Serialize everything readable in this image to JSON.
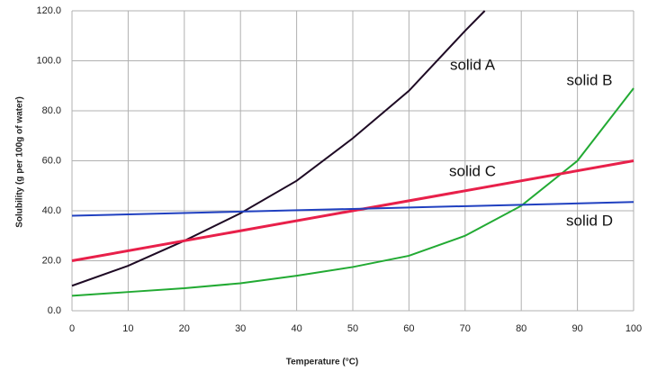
{
  "chart_data": {
    "type": "line",
    "x_label": "Temperature (°C)",
    "y_label": "Solubility (g per 100g of water)",
    "xlim": [
      0,
      100
    ],
    "xticks": [
      0,
      10,
      20,
      30,
      40,
      50,
      60,
      70,
      80,
      90,
      100
    ],
    "ylim": [
      0,
      120
    ],
    "yticks": [
      {
        "value": 0,
        "label": "0.0"
      },
      {
        "value": 20,
        "label": "20.0"
      },
      {
        "value": 40,
        "label": "40.0"
      },
      {
        "value": 60,
        "label": "60.0"
      },
      {
        "value": 80,
        "label": "80.0"
      },
      {
        "value": 100,
        "label": "100.0"
      },
      {
        "value": 120,
        "label": "120.0"
      }
    ],
    "grid": true,
    "series": [
      {
        "name": "solid A",
        "color": "#1e0a24",
        "x": [
          0,
          10,
          20,
          30,
          40,
          50,
          60,
          70,
          73.5
        ],
        "values": [
          10,
          18,
          28,
          39,
          52,
          69,
          88,
          112,
          120
        ]
      },
      {
        "name": "solid B",
        "color": "#22aa33",
        "x": [
          0,
          10,
          20,
          30,
          40,
          50,
          60,
          70,
          80,
          90,
          100
        ],
        "values": [
          6,
          7.5,
          9,
          11,
          14,
          17.5,
          22,
          30,
          42,
          60,
          89
        ]
      },
      {
        "name": "solid C",
        "color": "#e8204a",
        "x": [
          0,
          100
        ],
        "values": [
          20,
          60
        ]
      },
      {
        "name": "solid D",
        "color": "#2040c0",
        "x": [
          0,
          100
        ],
        "values": [
          38,
          43.5
        ]
      }
    ]
  }
}
